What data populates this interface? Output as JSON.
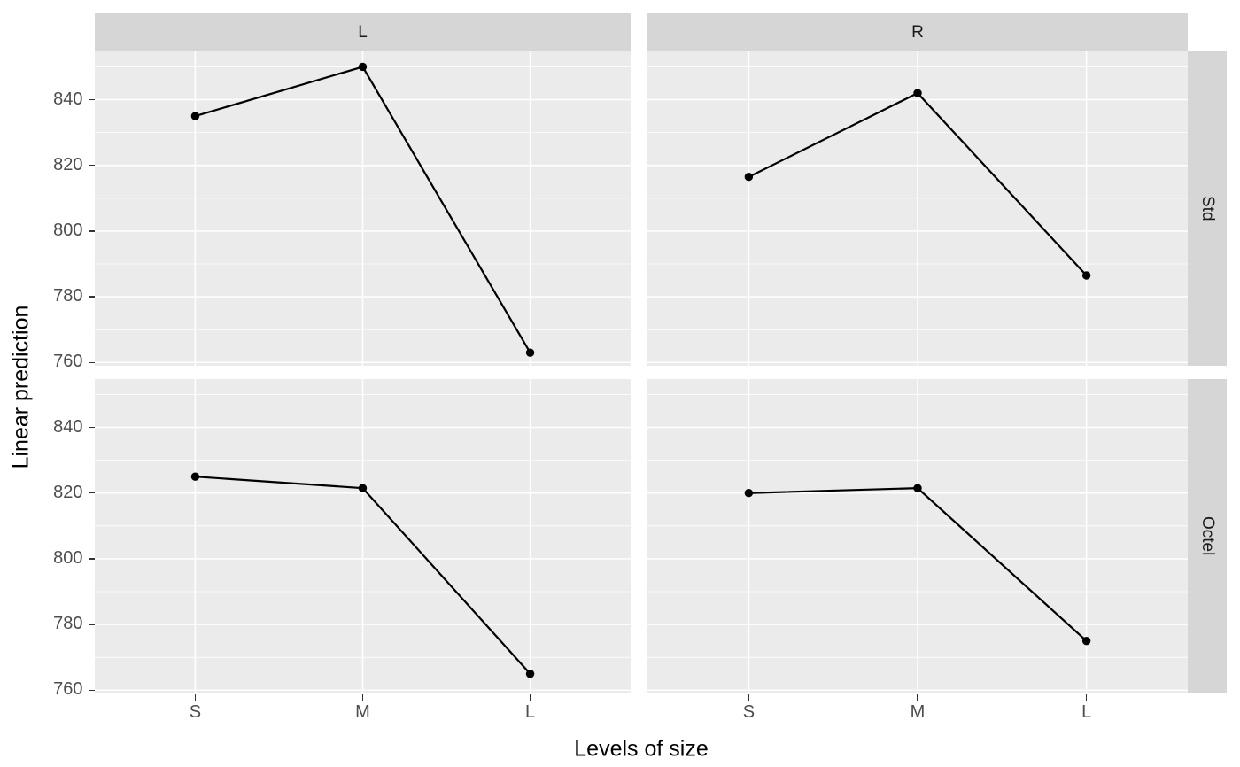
{
  "figure": {
    "background": "#ffffff",
    "panel_bg": "#ebebeb",
    "strip_bg": "#d6d6d6",
    "grid_color": "#ffffff",
    "axis_text_color": "#4d4d4d",
    "axis_title_color": "#000000",
    "strip_text_color": "#1a1a1a",
    "line_color": "#000000",
    "point_color": "#000000"
  },
  "chart_data": {
    "type": "line",
    "title": "",
    "xlabel": "Levels of size",
    "ylabel": "Linear prediction",
    "categories": [
      "S",
      "M",
      "L"
    ],
    "col_facets": [
      "L",
      "R"
    ],
    "row_facets": [
      "Std",
      "Octel"
    ],
    "y_ticks": [
      760,
      780,
      800,
      820,
      840
    ],
    "y_minor_ticks": [
      770,
      790,
      810,
      830,
      850
    ],
    "ylim": [
      759,
      854.7
    ],
    "grid": true,
    "legend": false,
    "series": [
      {
        "col": "L",
        "row": "Std",
        "values": [
          835,
          850,
          763
        ]
      },
      {
        "col": "R",
        "row": "Std",
        "values": [
          816.5,
          842,
          786.5
        ]
      },
      {
        "col": "L",
        "row": "Octel",
        "values": [
          825,
          821.5,
          765
        ]
      },
      {
        "col": "R",
        "row": "Octel",
        "values": [
          820,
          821.5,
          775
        ]
      }
    ]
  }
}
